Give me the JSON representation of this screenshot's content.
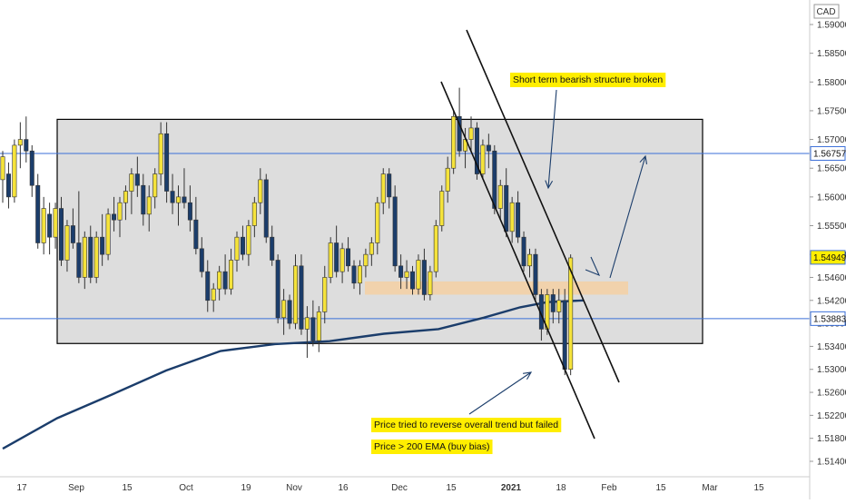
{
  "chart_data": {
    "type": "candlestick",
    "currency_label": "CAD",
    "y_ticks": [
      "1.59000",
      "1.58500",
      "1.58000",
      "1.57500",
      "1.57000",
      "1.56500",
      "1.56000",
      "1.55500",
      "1.55000",
      "1.54600",
      "1.54200",
      "1.53800",
      "1.53400",
      "1.53000",
      "1.52600",
      "1.52200",
      "1.51800",
      "1.51400"
    ],
    "x_ticks": [
      "17",
      "Sep",
      "15",
      "Oct",
      "19",
      "Nov",
      "16",
      "Dec",
      "15",
      "2021",
      "18",
      "Feb",
      "15",
      "Mar",
      "15"
    ],
    "x_ticks_bold": [
      "2021"
    ],
    "price_tags": [
      {
        "label": "1.56757",
        "value": 1.56757
      },
      {
        "label": "1.54949",
        "value": 1.54949
      },
      {
        "label": "1.53883",
        "value": 1.53883
      }
    ],
    "horizontal_lines": [
      1.56757,
      1.53883
    ],
    "range_box": {
      "x_from": "2020-08-24",
      "x_to": "2021-01-27",
      "y_from": 1.5345,
      "y_to": 1.5735
    },
    "zone": {
      "x_from": "2020-11-23",
      "x_to": "2021-01-28",
      "y_from": 1.543,
      "y_to": 1.5453
    },
    "ema_label": "200 EMA",
    "ema_points": [
      [
        0,
        1.5162
      ],
      [
        60,
        1.5215
      ],
      [
        120,
        1.5256
      ],
      [
        180,
        1.5298
      ],
      [
        240,
        1.5332
      ],
      [
        300,
        1.5344
      ],
      [
        360,
        1.5349
      ],
      [
        420,
        1.5362
      ],
      [
        480,
        1.537
      ],
      [
        530,
        1.539
      ],
      [
        570,
        1.5408
      ],
      [
        600,
        1.5417
      ],
      [
        640,
        1.542
      ]
    ],
    "candles": [
      {
        "o": 1.563,
        "h": 1.568,
        "l": 1.559,
        "c": 1.567
      },
      {
        "o": 1.564,
        "h": 1.566,
        "l": 1.558,
        "c": 1.56
      },
      {
        "o": 1.56,
        "h": 1.57,
        "l": 1.559,
        "c": 1.569
      },
      {
        "o": 1.569,
        "h": 1.573,
        "l": 1.565,
        "c": 1.57
      },
      {
        "o": 1.57,
        "h": 1.574,
        "l": 1.566,
        "c": 1.568
      },
      {
        "o": 1.568,
        "h": 1.569,
        "l": 1.56,
        "c": 1.562
      },
      {
        "o": 1.562,
        "h": 1.564,
        "l": 1.551,
        "c": 1.552
      },
      {
        "o": 1.552,
        "h": 1.56,
        "l": 1.55,
        "c": 1.558
      },
      {
        "o": 1.557,
        "h": 1.559,
        "l": 1.55,
        "c": 1.553
      },
      {
        "o": 1.553,
        "h": 1.559,
        "l": 1.551,
        "c": 1.558
      },
      {
        "o": 1.558,
        "h": 1.56,
        "l": 1.548,
        "c": 1.549
      },
      {
        "o": 1.549,
        "h": 1.556,
        "l": 1.547,
        "c": 1.555
      },
      {
        "o": 1.555,
        "h": 1.558,
        "l": 1.551,
        "c": 1.552
      },
      {
        "o": 1.552,
        "h": 1.561,
        "l": 1.545,
        "c": 1.546
      },
      {
        "o": 1.546,
        "h": 1.554,
        "l": 1.544,
        "c": 1.553
      },
      {
        "o": 1.553,
        "h": 1.555,
        "l": 1.545,
        "c": 1.546
      },
      {
        "o": 1.546,
        "h": 1.554,
        "l": 1.545,
        "c": 1.553
      },
      {
        "o": 1.553,
        "h": 1.557,
        "l": 1.548,
        "c": 1.55
      },
      {
        "o": 1.55,
        "h": 1.558,
        "l": 1.549,
        "c": 1.557
      },
      {
        "o": 1.557,
        "h": 1.56,
        "l": 1.554,
        "c": 1.556
      },
      {
        "o": 1.556,
        "h": 1.56,
        "l": 1.553,
        "c": 1.559
      },
      {
        "o": 1.559,
        "h": 1.562,
        "l": 1.556,
        "c": 1.561
      },
      {
        "o": 1.561,
        "h": 1.565,
        "l": 1.557,
        "c": 1.564
      },
      {
        "o": 1.564,
        "h": 1.567,
        "l": 1.56,
        "c": 1.562
      },
      {
        "o": 1.562,
        "h": 1.564,
        "l": 1.555,
        "c": 1.557
      },
      {
        "o": 1.557,
        "h": 1.562,
        "l": 1.554,
        "c": 1.56
      },
      {
        "o": 1.56,
        "h": 1.565,
        "l": 1.558,
        "c": 1.564
      },
      {
        "o": 1.564,
        "h": 1.573,
        "l": 1.562,
        "c": 1.571
      },
      {
        "o": 1.571,
        "h": 1.573,
        "l": 1.559,
        "c": 1.561
      },
      {
        "o": 1.561,
        "h": 1.564,
        "l": 1.557,
        "c": 1.559
      },
      {
        "o": 1.559,
        "h": 1.562,
        "l": 1.555,
        "c": 1.56
      },
      {
        "o": 1.56,
        "h": 1.565,
        "l": 1.558,
        "c": 1.559
      },
      {
        "o": 1.559,
        "h": 1.562,
        "l": 1.554,
        "c": 1.556
      },
      {
        "o": 1.556,
        "h": 1.56,
        "l": 1.55,
        "c": 1.551
      },
      {
        "o": 1.551,
        "h": 1.553,
        "l": 1.546,
        "c": 1.547
      },
      {
        "o": 1.547,
        "h": 1.549,
        "l": 1.54,
        "c": 1.542
      },
      {
        "o": 1.542,
        "h": 1.545,
        "l": 1.54,
        "c": 1.544
      },
      {
        "o": 1.544,
        "h": 1.548,
        "l": 1.542,
        "c": 1.547
      },
      {
        "o": 1.547,
        "h": 1.55,
        "l": 1.543,
        "c": 1.544
      },
      {
        "o": 1.544,
        "h": 1.551,
        "l": 1.543,
        "c": 1.549
      },
      {
        "o": 1.549,
        "h": 1.554,
        "l": 1.547,
        "c": 1.553
      },
      {
        "o": 1.553,
        "h": 1.555,
        "l": 1.549,
        "c": 1.55
      },
      {
        "o": 1.55,
        "h": 1.556,
        "l": 1.548,
        "c": 1.555
      },
      {
        "o": 1.555,
        "h": 1.56,
        "l": 1.553,
        "c": 1.559
      },
      {
        "o": 1.559,
        "h": 1.565,
        "l": 1.557,
        "c": 1.563
      },
      {
        "o": 1.563,
        "h": 1.564,
        "l": 1.552,
        "c": 1.553
      },
      {
        "o": 1.553,
        "h": 1.555,
        "l": 1.548,
        "c": 1.549
      },
      {
        "o": 1.549,
        "h": 1.55,
        "l": 1.538,
        "c": 1.539
      },
      {
        "o": 1.539,
        "h": 1.544,
        "l": 1.536,
        "c": 1.542
      },
      {
        "o": 1.542,
        "h": 1.543,
        "l": 1.537,
        "c": 1.538
      },
      {
        "o": 1.538,
        "h": 1.55,
        "l": 1.537,
        "c": 1.548
      },
      {
        "o": 1.548,
        "h": 1.55,
        "l": 1.536,
        "c": 1.537
      },
      {
        "o": 1.537,
        "h": 1.541,
        "l": 1.532,
        "c": 1.539
      },
      {
        "o": 1.539,
        "h": 1.542,
        "l": 1.534,
        "c": 1.535
      },
      {
        "o": 1.535,
        "h": 1.541,
        "l": 1.533,
        "c": 1.54
      },
      {
        "o": 1.54,
        "h": 1.548,
        "l": 1.538,
        "c": 1.546
      },
      {
        "o": 1.546,
        "h": 1.553,
        "l": 1.545,
        "c": 1.552
      },
      {
        "o": 1.552,
        "h": 1.555,
        "l": 1.546,
        "c": 1.547
      },
      {
        "o": 1.547,
        "h": 1.552,
        "l": 1.545,
        "c": 1.551
      },
      {
        "o": 1.551,
        "h": 1.553,
        "l": 1.547,
        "c": 1.548
      },
      {
        "o": 1.548,
        "h": 1.549,
        "l": 1.544,
        "c": 1.545
      },
      {
        "o": 1.545,
        "h": 1.549,
        "l": 1.543,
        "c": 1.548
      },
      {
        "o": 1.548,
        "h": 1.551,
        "l": 1.546,
        "c": 1.55
      },
      {
        "o": 1.55,
        "h": 1.553,
        "l": 1.548,
        "c": 1.552
      },
      {
        "o": 1.552,
        "h": 1.56,
        "l": 1.55,
        "c": 1.559
      },
      {
        "o": 1.559,
        "h": 1.565,
        "l": 1.557,
        "c": 1.564
      },
      {
        "o": 1.564,
        "h": 1.565,
        "l": 1.558,
        "c": 1.56
      },
      {
        "o": 1.56,
        "h": 1.562,
        "l": 1.547,
        "c": 1.548
      },
      {
        "o": 1.548,
        "h": 1.55,
        "l": 1.544,
        "c": 1.546
      },
      {
        "o": 1.546,
        "h": 1.549,
        "l": 1.544,
        "c": 1.547
      },
      {
        "o": 1.547,
        "h": 1.548,
        "l": 1.543,
        "c": 1.544
      },
      {
        "o": 1.544,
        "h": 1.55,
        "l": 1.543,
        "c": 1.549
      },
      {
        "o": 1.549,
        "h": 1.551,
        "l": 1.542,
        "c": 1.543
      },
      {
        "o": 1.543,
        "h": 1.548,
        "l": 1.542,
        "c": 1.547
      },
      {
        "o": 1.547,
        "h": 1.556,
        "l": 1.546,
        "c": 1.555
      },
      {
        "o": 1.555,
        "h": 1.562,
        "l": 1.554,
        "c": 1.561
      },
      {
        "o": 1.561,
        "h": 1.567,
        "l": 1.559,
        "c": 1.565
      },
      {
        "o": 1.565,
        "h": 1.575,
        "l": 1.564,
        "c": 1.574
      },
      {
        "o": 1.574,
        "h": 1.579,
        "l": 1.567,
        "c": 1.568
      },
      {
        "o": 1.568,
        "h": 1.572,
        "l": 1.565,
        "c": 1.57
      },
      {
        "o": 1.57,
        "h": 1.574,
        "l": 1.568,
        "c": 1.572
      },
      {
        "o": 1.572,
        "h": 1.573,
        "l": 1.563,
        "c": 1.564
      },
      {
        "o": 1.564,
        "h": 1.57,
        "l": 1.563,
        "c": 1.569
      },
      {
        "o": 1.569,
        "h": 1.571,
        "l": 1.565,
        "c": 1.568
      },
      {
        "o": 1.568,
        "h": 1.569,
        "l": 1.557,
        "c": 1.558
      },
      {
        "o": 1.558,
        "h": 1.563,
        "l": 1.556,
        "c": 1.562
      },
      {
        "o": 1.562,
        "h": 1.565,
        "l": 1.553,
        "c": 1.554
      },
      {
        "o": 1.554,
        "h": 1.56,
        "l": 1.552,
        "c": 1.559
      },
      {
        "o": 1.559,
        "h": 1.561,
        "l": 1.552,
        "c": 1.553
      },
      {
        "o": 1.553,
        "h": 1.554,
        "l": 1.547,
        "c": 1.548
      },
      {
        "o": 1.548,
        "h": 1.551,
        "l": 1.546,
        "c": 1.55
      },
      {
        "o": 1.55,
        "h": 1.551,
        "l": 1.542,
        "c": 1.543
      },
      {
        "o": 1.543,
        "h": 1.544,
        "l": 1.535,
        "c": 1.537
      },
      {
        "o": 1.537,
        "h": 1.544,
        "l": 1.536,
        "c": 1.543
      },
      {
        "o": 1.543,
        "h": 1.544,
        "l": 1.538,
        "c": 1.54
      },
      {
        "o": 1.54,
        "h": 1.544,
        "l": 1.538,
        "c": 1.542
      },
      {
        "o": 1.542,
        "h": 1.544,
        "l": 1.529,
        "c": 1.53
      },
      {
        "o": 1.53,
        "h": 1.55,
        "l": 1.529,
        "c": 1.5494
      }
    ],
    "annotations": [
      {
        "text": "Short term bearish structure broken",
        "x_date": "2020-12-18",
        "y": 1.5798
      },
      {
        "text": "Price tried to reverse overall trend but failed",
        "x_date": "2020-11-29",
        "y": 1.5212
      },
      {
        "text": "Price > 200 EMA (buy bias)",
        "x_date": "2020-11-29",
        "y": 1.5168
      }
    ],
    "colors": {
      "bull": "#f5e33b",
      "bear": "#1b3d6b",
      "wick": "#333333",
      "hline": "#3a6fd8",
      "ema": "#1b3d6b",
      "box_fill": "#dddddd",
      "zone_fill": "#f5d0a3",
      "annotation_fill": "#ffee00",
      "tag_bg": "#ffee00"
    }
  }
}
